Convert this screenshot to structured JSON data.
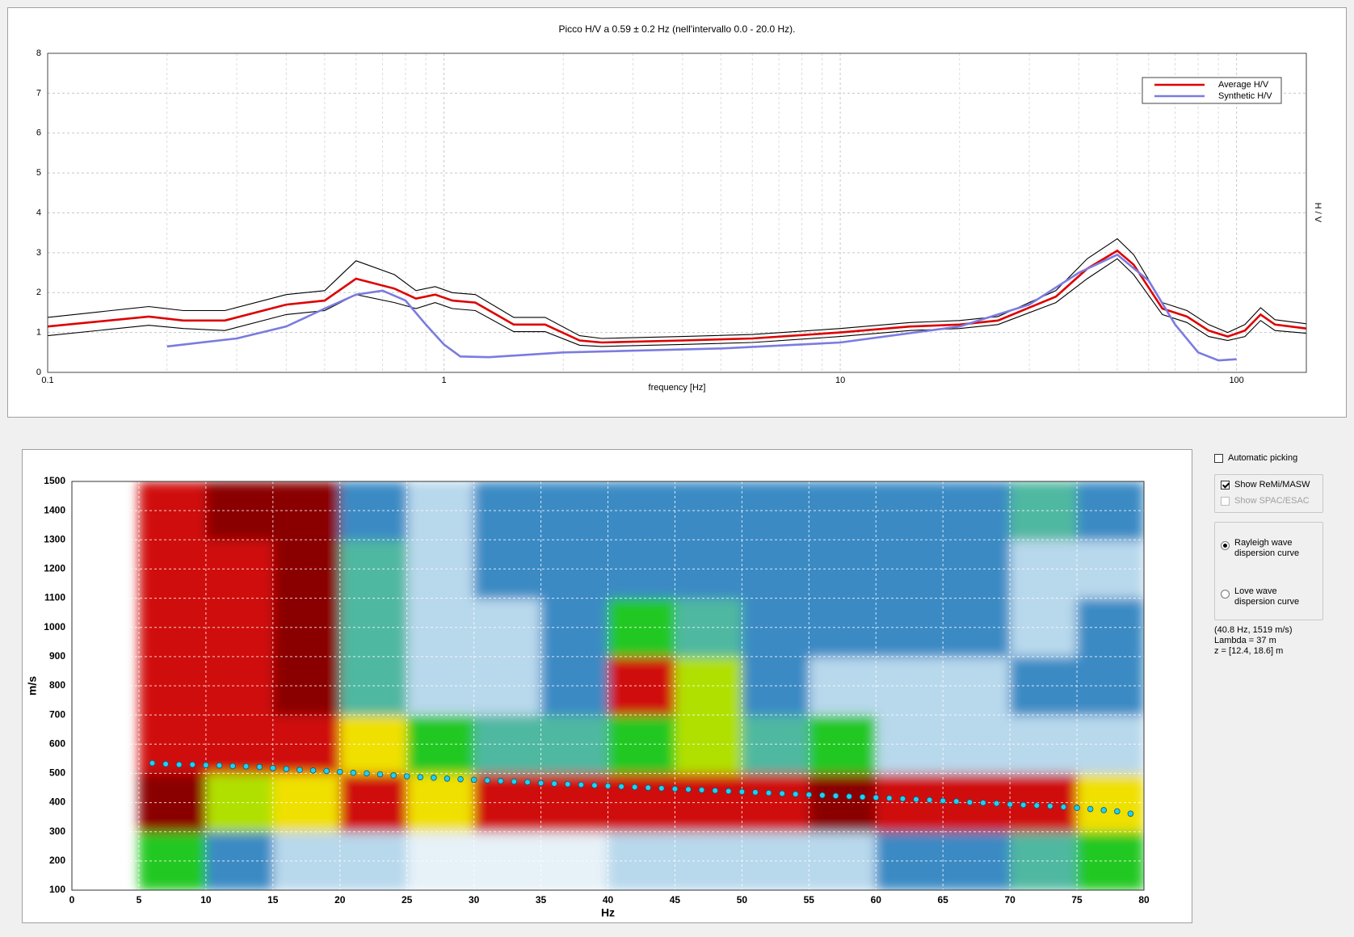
{
  "chart_data": [
    {
      "type": "line",
      "title": "Picco H/V a 0.59 ± 0.2 Hz (nell'intervallo 0.0 - 20.0 Hz).",
      "x_label": "frequency [Hz]",
      "y_label": "H / V",
      "x_scale": "log",
      "xlim": [
        0.1,
        150
      ],
      "xticks": [
        0.1,
        1,
        10,
        100
      ],
      "ylim": [
        0,
        8
      ],
      "yticks": [
        0,
        1,
        2,
        3,
        4,
        5,
        6,
        7,
        8
      ],
      "grid": true,
      "legend": "upper right",
      "series": [
        {
          "color": "#000000",
          "x": [
            0.1,
            0.18,
            0.22,
            0.28,
            0.4,
            0.5,
            0.6,
            0.75,
            0.85,
            0.95,
            1.05,
            1.2,
            1.5,
            1.8,
            2.2,
            2.5,
            4,
            6,
            10,
            15,
            20,
            25,
            35,
            42,
            50,
            55,
            65,
            75,
            85,
            95,
            105,
            115,
            125,
            150
          ],
          "values": [
            1.38,
            1.65,
            1.55,
            1.55,
            1.95,
            2.05,
            2.8,
            2.45,
            2.05,
            2.15,
            2.0,
            1.95,
            1.38,
            1.38,
            0.92,
            0.85,
            0.9,
            0.95,
            1.1,
            1.25,
            1.3,
            1.4,
            2.05,
            2.85,
            3.35,
            2.95,
            1.75,
            1.55,
            1.2,
            1.0,
            1.2,
            1.62,
            1.32,
            1.22
          ]
        },
        {
          "color": "#000000",
          "x": [
            0.1,
            0.18,
            0.22,
            0.28,
            0.4,
            0.5,
            0.6,
            0.75,
            0.85,
            0.95,
            1.05,
            1.2,
            1.5,
            1.8,
            2.2,
            2.5,
            4,
            6,
            10,
            15,
            20,
            25,
            35,
            42,
            50,
            55,
            65,
            75,
            85,
            95,
            105,
            115,
            125,
            150
          ],
          "values": [
            0.92,
            1.18,
            1.1,
            1.05,
            1.45,
            1.55,
            1.95,
            1.75,
            1.6,
            1.75,
            1.6,
            1.55,
            1.02,
            1.02,
            0.68,
            0.65,
            0.7,
            0.75,
            0.9,
            1.05,
            1.1,
            1.2,
            1.75,
            2.35,
            2.85,
            2.45,
            1.45,
            1.25,
            0.9,
            0.8,
            0.9,
            1.3,
            1.05,
            0.98
          ]
        },
        {
          "name": "Average H/V",
          "color": "#dd0000",
          "x": [
            0.1,
            0.18,
            0.22,
            0.28,
            0.4,
            0.5,
            0.6,
            0.75,
            0.85,
            0.95,
            1.05,
            1.2,
            1.5,
            1.8,
            2.2,
            2.5,
            4,
            6,
            10,
            15,
            20,
            25,
            35,
            42,
            50,
            55,
            65,
            75,
            85,
            95,
            105,
            115,
            125,
            150
          ],
          "values": [
            1.15,
            1.4,
            1.3,
            1.3,
            1.7,
            1.8,
            2.35,
            2.1,
            1.85,
            1.95,
            1.8,
            1.75,
            1.2,
            1.2,
            0.8,
            0.75,
            0.8,
            0.85,
            1.0,
            1.15,
            1.2,
            1.3,
            1.9,
            2.6,
            3.05,
            2.7,
            1.6,
            1.4,
            1.05,
            0.9,
            1.05,
            1.45,
            1.2,
            1.1
          ]
        },
        {
          "name": "Synthetic H/V",
          "color": "#7b7be0",
          "x": [
            0.2,
            0.3,
            0.4,
            0.5,
            0.6,
            0.7,
            0.8,
            0.9,
            1,
            1.1,
            1.3,
            2,
            5,
            10,
            20,
            30,
            40,
            50,
            60,
            70,
            80,
            90,
            100
          ],
          "values": [
            0.65,
            0.85,
            1.15,
            1.6,
            1.95,
            2.05,
            1.8,
            1.2,
            0.7,
            0.4,
            0.38,
            0.5,
            0.6,
            0.75,
            1.15,
            1.7,
            2.5,
            2.95,
            2.3,
            1.2,
            0.5,
            0.3,
            0.33
          ]
        }
      ]
    },
    {
      "type": "heatmap",
      "x_label": "Hz",
      "y_label": "m/s",
      "xlim": [
        0,
        80
      ],
      "xticks": [
        0,
        5,
        10,
        15,
        20,
        25,
        30,
        35,
        40,
        45,
        50,
        55,
        60,
        65,
        70,
        75,
        80
      ],
      "ylim": [
        100,
        1500
      ],
      "yticks": [
        100,
        200,
        300,
        400,
        500,
        600,
        700,
        800,
        900,
        1000,
        1100,
        1200,
        1300,
        1400,
        1500
      ],
      "grid": true,
      "x_bins": [
        0,
        5,
        10,
        15,
        20,
        25,
        30,
        35,
        40,
        45,
        50,
        55,
        60,
        65,
        70,
        75,
        80
      ],
      "y_bins": [
        100,
        300,
        500,
        700,
        900,
        1100,
        1300,
        1500
      ],
      "zlim": [
        0,
        9
      ],
      "colorscale": [
        "#ffffff",
        "#e6f1f8",
        "#b8d8ec",
        "#3a8ac4",
        "#4fb8a0",
        "#22c822",
        "#b0e000",
        "#f0e000",
        "#d01010",
        "#8a0000"
      ],
      "z": [
        [
          null,
          null,
          null,
          null,
          null,
          null,
          null
        ],
        [
          5,
          9,
          8,
          8,
          8,
          8,
          8
        ],
        [
          3,
          6,
          8,
          8,
          8,
          8,
          9
        ],
        [
          2,
          7,
          8,
          9,
          9,
          9,
          9
        ],
        [
          2,
          8,
          7,
          4,
          4,
          4,
          3
        ],
        [
          1,
          7,
          5,
          2,
          2,
          2,
          2
        ],
        [
          1,
          8,
          4,
          2,
          2,
          3,
          3
        ],
        [
          1,
          8,
          4,
          3,
          3,
          3,
          3
        ],
        [
          2,
          8,
          5,
          8,
          5,
          3,
          3
        ],
        [
          2,
          8,
          6,
          6,
          4,
          3,
          3
        ],
        [
          2,
          8,
          4,
          3,
          3,
          3,
          3
        ],
        [
          2,
          9,
          5,
          2,
          3,
          3,
          3
        ],
        [
          3,
          8,
          2,
          2,
          3,
          3,
          3
        ],
        [
          3,
          8,
          2,
          2,
          3,
          3,
          3
        ],
        [
          4,
          8,
          2,
          3,
          2,
          2,
          4
        ],
        [
          5,
          7,
          2,
          3,
          3,
          2,
          3
        ]
      ],
      "picks": {
        "color": "#22d0f0",
        "x": [
          6,
          7,
          8,
          9,
          10,
          11,
          12,
          13,
          14,
          15,
          16,
          17,
          18,
          19,
          20,
          21,
          22,
          23,
          24,
          25,
          26,
          27,
          28,
          29,
          30,
          31,
          32,
          33,
          34,
          35,
          36,
          37,
          38,
          39,
          40,
          41,
          42,
          43,
          44,
          45,
          46,
          47,
          48,
          49,
          50,
          51,
          52,
          53,
          54,
          55,
          56,
          57,
          58,
          59,
          60,
          61,
          62,
          63,
          64,
          65,
          66,
          67,
          68,
          69,
          70,
          71,
          72,
          73,
          74,
          75,
          76,
          77,
          78,
          79
        ],
        "values": [
          535,
          532,
          530,
          530,
          528,
          527,
          525,
          524,
          522,
          518,
          515,
          512,
          510,
          508,
          505,
          502,
          500,
          497,
          493,
          490,
          487,
          485,
          482,
          480,
          478,
          476,
          474,
          472,
          470,
          467,
          465,
          463,
          461,
          459,
          457,
          455,
          453,
          451,
          449,
          447,
          445,
          443,
          441,
          439,
          437,
          435,
          433,
          431,
          429,
          427,
          425,
          423,
          421,
          419,
          417,
          415,
          413,
          411,
          409,
          406,
          404,
          401,
          399,
          397,
          394,
          392,
          390,
          388,
          385,
          382,
          378,
          374,
          370,
          362
        ]
      }
    }
  ],
  "controls": {
    "automatic_picking": {
      "label": "Automatic picking",
      "checked": false
    },
    "show_remi": {
      "label": "Show ReMi/MASW",
      "checked": true
    },
    "show_spac": {
      "label": "Show SPAC/ESAC",
      "checked": false,
      "enabled": false
    },
    "rayleigh": {
      "label": [
        "Rayleigh wave",
        "dispersion curve"
      ],
      "selected": true
    },
    "love": {
      "label": [
        "Love wave",
        "dispersion curve"
      ],
      "selected": false
    },
    "info": [
      "(40.8 Hz, 1519 m/s)",
      "Lambda = 37 m",
      "z = [12.4, 18.6] m"
    ]
  }
}
